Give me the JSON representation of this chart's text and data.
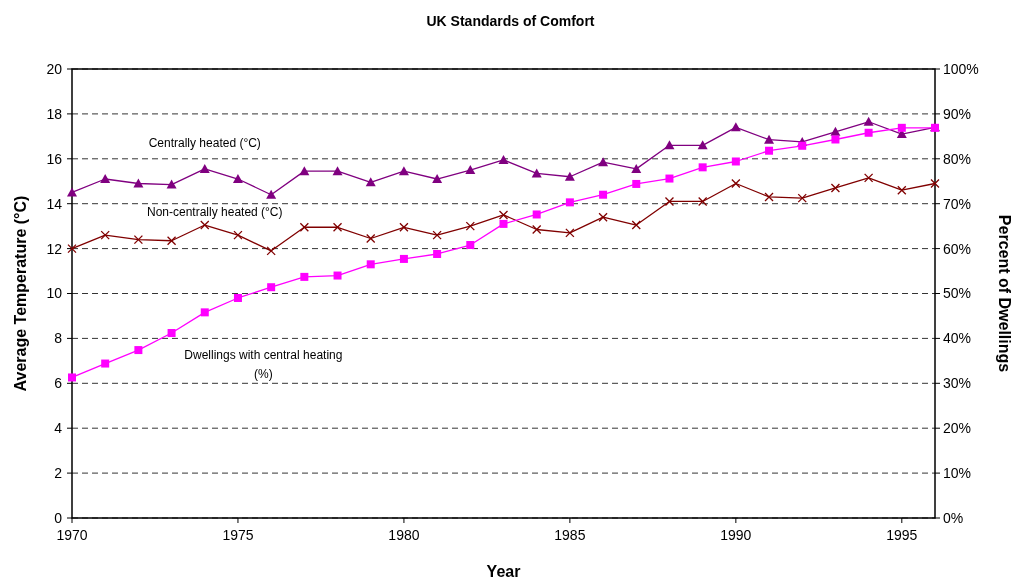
{
  "chart_data": {
    "type": "line",
    "title": "UK Standards of Comfort",
    "xlabel": "Year",
    "ylabel": "Average Temperature (°C)",
    "y2label": "Percent of Dwellings",
    "x": [
      1970,
      1971,
      1972,
      1973,
      1974,
      1975,
      1976,
      1977,
      1978,
      1979,
      1980,
      1981,
      1982,
      1983,
      1984,
      1985,
      1986,
      1987,
      1988,
      1989,
      1990,
      1991,
      1992,
      1993,
      1994,
      1995,
      1996
    ],
    "xlim": [
      1970,
      1996
    ],
    "xticks": [
      1970,
      1975,
      1980,
      1985,
      1990,
      1995
    ],
    "ylim": [
      0,
      20
    ],
    "yticks": [
      0,
      2,
      4,
      6,
      8,
      10,
      12,
      14,
      16,
      18,
      20
    ],
    "y2lim": [
      0,
      100
    ],
    "y2ticks": [
      {
        "value": 0,
        "label": "0%"
      },
      {
        "value": 10,
        "label": "10%"
      },
      {
        "value": 20,
        "label": "20%"
      },
      {
        "value": 30,
        "label": "30%"
      },
      {
        "value": 40,
        "label": "40%"
      },
      {
        "value": 50,
        "label": "50%"
      },
      {
        "value": 60,
        "label": "60%"
      },
      {
        "value": 70,
        "label": "70%"
      },
      {
        "value": 80,
        "label": "80%"
      },
      {
        "value": 90,
        "label": "90%"
      },
      {
        "value": 100,
        "label": "100%"
      }
    ],
    "grid": "y",
    "legend": false,
    "line_style": "solid",
    "series": [
      {
        "name": "Centrally heated (°C)",
        "color": "#800080",
        "marker": "triangle",
        "values": [
          14.5,
          15.1,
          14.9,
          14.85,
          15.55,
          15.1,
          14.4,
          15.45,
          15.45,
          14.95,
          15.45,
          15.1,
          15.5,
          15.95,
          15.35,
          15.2,
          15.85,
          15.55,
          16.6,
          16.6,
          17.4,
          16.85,
          16.75,
          17.2,
          17.65,
          17.1,
          17.4
        ]
      },
      {
        "name": "Non-centrally heated (°C)",
        "color": "#800000",
        "marker": "cross",
        "values": [
          12.0,
          12.6,
          12.4,
          12.35,
          13.05,
          12.6,
          11.9,
          12.95,
          12.95,
          12.45,
          12.95,
          12.6,
          13.0,
          13.5,
          12.85,
          12.7,
          13.4,
          13.05,
          14.1,
          14.1,
          14.9,
          14.3,
          14.25,
          14.7,
          15.15,
          14.6,
          14.9
        ]
      },
      {
        "name": "Dwellings with central heating (%)",
        "color": "#ff00ff",
        "marker": "square",
        "axis": "y2",
        "values": [
          31.3,
          34.4,
          37.4,
          41.2,
          45.8,
          49.0,
          51.4,
          53.7,
          54.0,
          56.5,
          57.7,
          58.8,
          60.8,
          65.5,
          67.6,
          70.3,
          72.0,
          74.4,
          75.6,
          78.1,
          79.4,
          81.8,
          82.9,
          84.3,
          85.8,
          86.9,
          86.9
        ]
      }
    ]
  }
}
